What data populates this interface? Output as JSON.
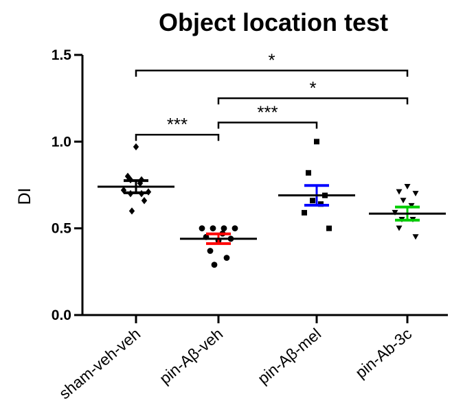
{
  "chart_data": {
    "type": "scatter",
    "title": "Object location test",
    "xlabel": "",
    "ylabel": "DI",
    "ylim": [
      0,
      1.5
    ],
    "yticks": [
      "0.0",
      "0.5",
      "1.0",
      "1.5"
    ],
    "grid": false,
    "categories": [
      "sham-veh-veh",
      "pin-Aβ-veh",
      "pin-Aβ-mel",
      "pin-Ab-3c"
    ],
    "groups": [
      {
        "category": "sham-veh-veh",
        "marker": "diamond",
        "error_color": "#000000",
        "mean": 0.74,
        "sem": 0.035,
        "points": [
          0.97,
          0.8,
          0.78,
          0.78,
          0.76,
          0.72,
          0.71,
          0.7,
          0.7,
          0.66,
          0.6
        ]
      },
      {
        "category": "pin-Aβ-veh",
        "marker": "circle",
        "error_color": "#ff0000",
        "mean": 0.44,
        "sem": 0.028,
        "points": [
          0.5,
          0.5,
          0.5,
          0.5,
          0.47,
          0.45,
          0.44,
          0.43,
          0.37,
          0.33,
          0.29
        ]
      },
      {
        "category": "pin-Aβ-mel",
        "marker": "square",
        "error_color": "#0000ff",
        "mean": 0.69,
        "sem": 0.057,
        "points": [
          1.0,
          0.82,
          0.69,
          0.66,
          0.64,
          0.59,
          0.5
        ]
      },
      {
        "category": "pin-Ab-3c",
        "marker": "triangle-down",
        "error_color": "#00cc00",
        "mean": 0.585,
        "sem": 0.038,
        "points": [
          0.74,
          0.71,
          0.7,
          0.66,
          0.63,
          0.59,
          0.55,
          0.55,
          0.5,
          0.45
        ]
      }
    ],
    "significance": [
      {
        "from": "pin-Aβ-veh",
        "to": "pin-Aβ-mel",
        "y": 1.11,
        "label": "***"
      },
      {
        "from": "sham-veh-veh",
        "to": "pin-Aβ-veh",
        "y": 1.04,
        "label": "***"
      },
      {
        "from": "pin-Aβ-veh",
        "to": "pin-Ab-3c",
        "y": 1.25,
        "label": "*"
      },
      {
        "from": "sham-veh-veh",
        "to": "pin-Ab-3c",
        "y": 1.41,
        "label": "*"
      }
    ]
  }
}
